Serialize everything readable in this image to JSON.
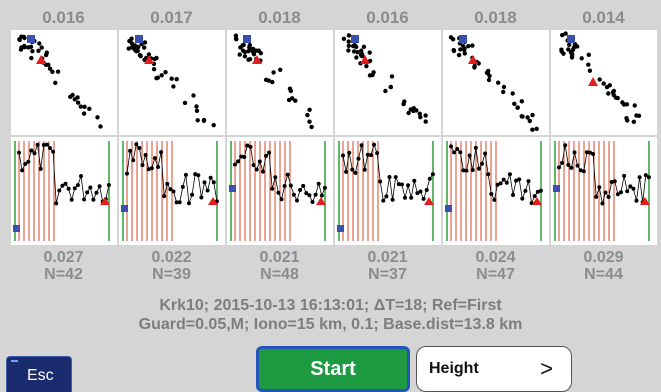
{
  "panels": [
    {
      "top": "0.016",
      "bottom": "0.027",
      "count": "N=42"
    },
    {
      "top": "0.017",
      "bottom": "0.022",
      "count": "N=39"
    },
    {
      "top": "0.018",
      "bottom": "0.021",
      "count": "N=48"
    },
    {
      "top": "0.016",
      "bottom": "0.021",
      "count": "N=37"
    },
    {
      "top": "0.018",
      "bottom": "0.024",
      "count": "N=47"
    },
    {
      "top": "0.014",
      "bottom": "0.029",
      "count": "N=44"
    }
  ],
  "info": {
    "line1": "Krk10; 2015-10-13 16:13:01; ΔT=18; Ref=First",
    "line2": "Guard=0.05,M; Iono=15 km, 0.1; Base.dist=13.8 km"
  },
  "buttons": {
    "esc": "Esc",
    "start": "Start",
    "height": "Height",
    "height_chevron": ">"
  },
  "icons": {
    "chevron": "chevron-right-icon",
    "first_marker": "blue-square-icon",
    "last_marker": "red-triangle-icon"
  },
  "colors": {
    "start_bg": "#1d9a42",
    "esc_bg": "#1a2c6e",
    "marker_first": "#3a4fb0",
    "marker_last": "#e21d1d",
    "guard_lines": "#d64a2a",
    "end_lines": "#2e9e3b"
  }
}
